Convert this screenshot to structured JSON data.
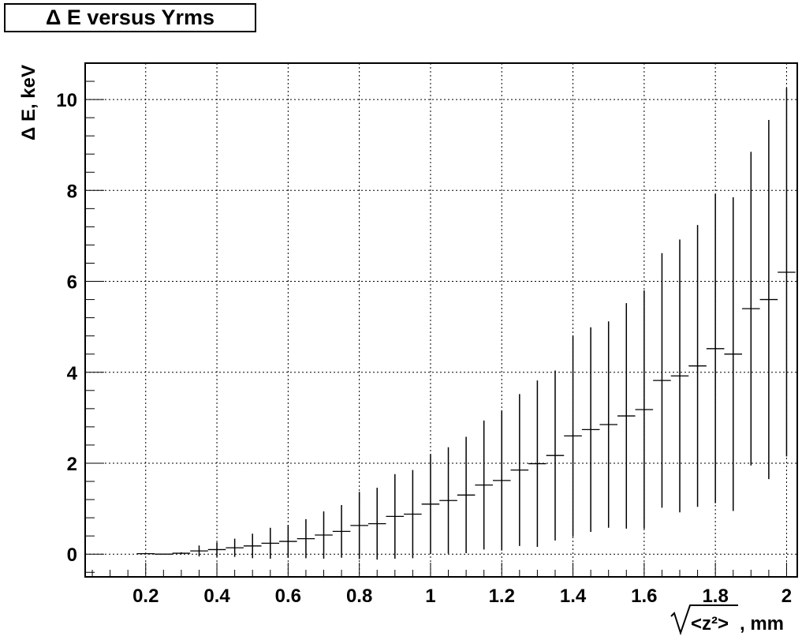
{
  "chart_data": {
    "type": "scatter",
    "title": "Δ E versus Yrms",
    "xlabel": "√<z²>, mm",
    "ylabel": "Δ E, keV",
    "xlim": [
      0.03,
      2.03
    ],
    "ylim": [
      -0.5,
      10.8
    ],
    "grid": true,
    "x_ticks": [
      "0.2",
      "0.4",
      "0.6",
      "0.8",
      "1",
      "1.2",
      "1.4",
      "1.6",
      "1.8",
      "2"
    ],
    "y_ticks": [
      "0",
      "2",
      "4",
      "6",
      "8",
      "10"
    ],
    "bin_width": 0.05,
    "series": [
      {
        "x": [
          0.2,
          0.25,
          0.3,
          0.35,
          0.4,
          0.45,
          0.5,
          0.55,
          0.6,
          0.65,
          0.7,
          0.75,
          0.8,
          0.85,
          0.9,
          0.95,
          1.0,
          1.05,
          1.1,
          1.15,
          1.2,
          1.25,
          1.3,
          1.35,
          1.4,
          1.45,
          1.5,
          1.55,
          1.6,
          1.65,
          1.7,
          1.75,
          1.8,
          1.85,
          1.9,
          1.95,
          2.0
        ],
        "y": [
          0.01,
          0.0,
          0.02,
          0.07,
          0.1,
          0.14,
          0.18,
          0.24,
          0.28,
          0.34,
          0.42,
          0.5,
          0.63,
          0.67,
          0.83,
          0.88,
          1.1,
          1.18,
          1.3,
          1.52,
          1.62,
          1.85,
          1.99,
          2.17,
          2.6,
          2.74,
          2.85,
          3.04,
          3.18,
          3.82,
          3.92,
          4.14,
          4.52,
          4.4,
          5.4,
          5.6,
          6.2
        ],
        "yerr": [
          0.0,
          0.0,
          0.02,
          0.12,
          0.16,
          0.2,
          0.27,
          0.34,
          0.36,
          0.43,
          0.52,
          0.58,
          0.74,
          0.79,
          0.93,
          0.97,
          1.1,
          1.17,
          1.28,
          1.42,
          1.54,
          1.67,
          1.83,
          1.87,
          2.21,
          2.25,
          2.27,
          2.48,
          2.62,
          2.8,
          3.0,
          3.1,
          3.4,
          3.45,
          3.45,
          3.95,
          4.05
        ]
      }
    ]
  }
}
